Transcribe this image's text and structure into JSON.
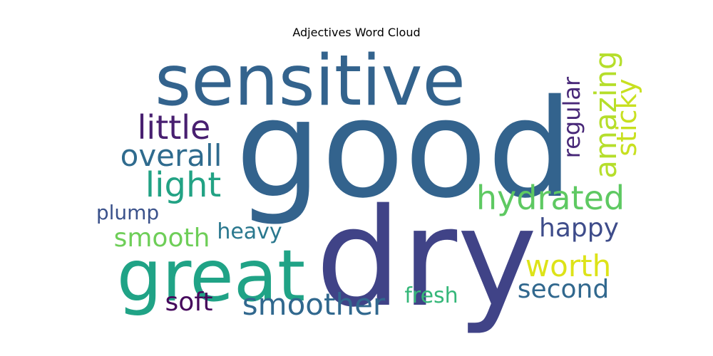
{
  "chart_data": {
    "type": "wordcloud",
    "title": "Adjectives Word Cloud",
    "words": [
      {
        "text": "good",
        "color": "#33638d"
      },
      {
        "text": "sensitive",
        "color": "#33638d"
      },
      {
        "text": "dry",
        "color": "#404387"
      },
      {
        "text": "great",
        "color": "#20a386"
      },
      {
        "text": "little",
        "color": "#481f70"
      },
      {
        "text": "overall",
        "color": "#2f6b8e"
      },
      {
        "text": "light",
        "color": "#22a284"
      },
      {
        "text": "plump",
        "color": "#3b528b"
      },
      {
        "text": "smooth",
        "color": "#6ece58"
      },
      {
        "text": "heavy",
        "color": "#2a788e"
      },
      {
        "text": "soft",
        "color": "#46085c"
      },
      {
        "text": "smoother",
        "color": "#31688e"
      },
      {
        "text": "fresh",
        "color": "#35b779"
      },
      {
        "text": "hydrated",
        "color": "#5ec962"
      },
      {
        "text": "happy",
        "color": "#3e4c8a"
      },
      {
        "text": "worth",
        "color": "#dde318"
      },
      {
        "text": "second",
        "color": "#31688e"
      },
      {
        "text": "regular",
        "color": "#482878"
      },
      {
        "text": "amazing",
        "color": "#b5de2b"
      },
      {
        "text": "sticky",
        "color": "#c8e020"
      }
    ]
  }
}
